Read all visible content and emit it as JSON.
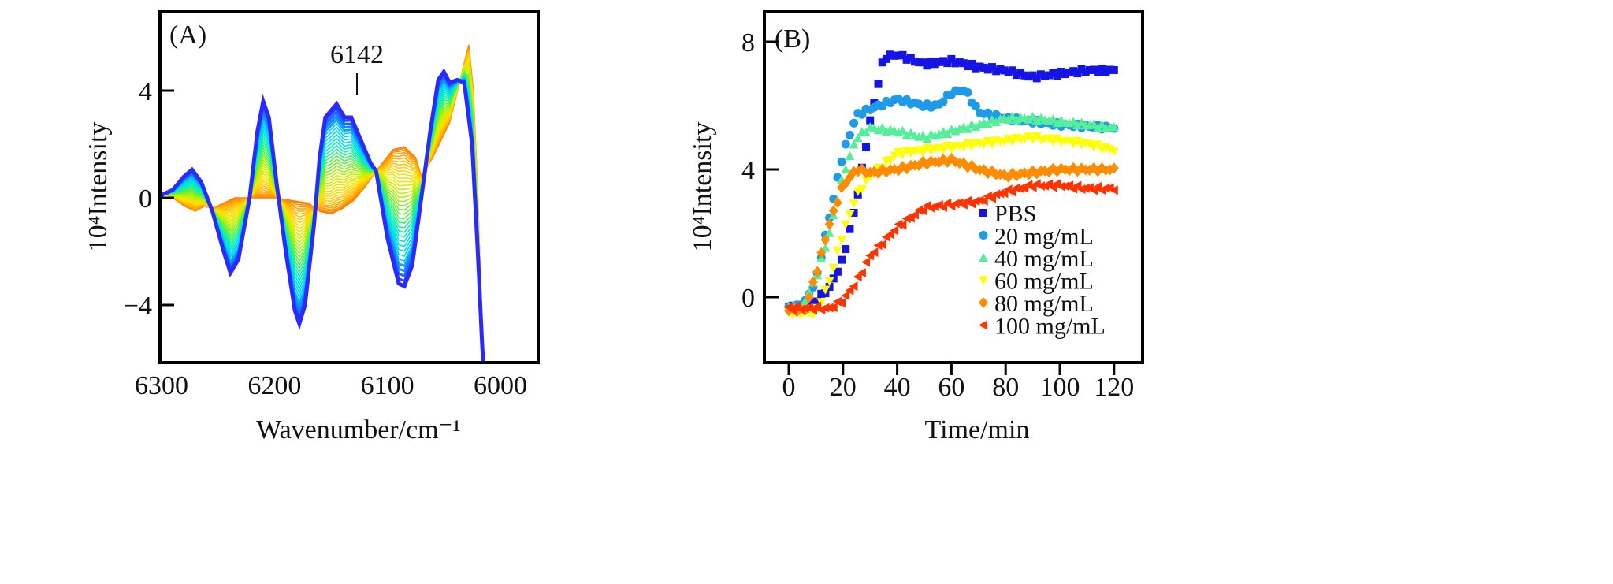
{
  "chart_data": [
    {
      "type": "line",
      "panel_label": "(A)",
      "xlabel": "Wavenumber/cm⁻¹",
      "ylabel": "10⁴Intensity",
      "xlim": [
        6300,
        5966
      ],
      "ylim": [
        -6.1,
        6.8
      ],
      "xticks": [
        "6300",
        "6200",
        "6100",
        "6000"
      ],
      "xtick_values": [
        6300,
        6200,
        6100,
        6000
      ],
      "yticks": [
        "−4",
        "0",
        "4"
      ],
      "ytick_values": [
        -4,
        0,
        4
      ],
      "annotation": {
        "text": "6142",
        "x": 6142
      },
      "n_curves": 36,
      "colors": [
        "#ff7a00",
        "#ffb000",
        "#ffe000",
        "#c8f000",
        "#60f040",
        "#00f0c0",
        "#00c8ff",
        "#2a2aff"
      ],
      "series_start": {
        "name": "initial",
        "points": [
          [
            6300,
            0.2
          ],
          [
            6290,
            0.0
          ],
          [
            6280,
            -0.3
          ],
          [
            6270,
            -0.5
          ],
          [
            6262,
            -0.3
          ],
          [
            6255,
            -0.4
          ],
          [
            6245,
            -0.2
          ],
          [
            6235,
            0.0
          ],
          [
            6220,
            0.0
          ],
          [
            6200,
            0.0
          ],
          [
            6185,
            -0.1
          ],
          [
            6170,
            -0.2
          ],
          [
            6160,
            -0.5
          ],
          [
            6150,
            -0.6
          ],
          [
            6140,
            -0.4
          ],
          [
            6130,
            -0.1
          ],
          [
            6120,
            0.4
          ],
          [
            6110,
            1.0
          ],
          [
            6095,
            1.8
          ],
          [
            6085,
            1.9
          ],
          [
            6075,
            1.5
          ],
          [
            6070,
            0.8
          ],
          [
            6060,
            1.5
          ],
          [
            6045,
            2.8
          ],
          [
            6035,
            4.5
          ],
          [
            6028,
            5.7
          ],
          [
            6024,
            4.0
          ],
          [
            6020,
            0.0
          ],
          [
            6015,
            -6.5
          ]
        ]
      },
      "series_end": {
        "name": "final",
        "points": [
          [
            6300,
            0.1
          ],
          [
            6295,
            0.2
          ],
          [
            6290,
            0.3
          ],
          [
            6280,
            0.8
          ],
          [
            6273,
            1.05
          ],
          [
            6265,
            0.6
          ],
          [
            6255,
            -0.5
          ],
          [
            6245,
            -2.0
          ],
          [
            6239,
            -2.8
          ],
          [
            6232,
            -2.3
          ],
          [
            6222,
            0.0
          ],
          [
            6215,
            2.5
          ],
          [
            6210,
            3.6
          ],
          [
            6205,
            3.0
          ],
          [
            6198,
            0.5
          ],
          [
            6190,
            -2.0
          ],
          [
            6182,
            -4.2
          ],
          [
            6178,
            -4.7
          ],
          [
            6173,
            -4.0
          ],
          [
            6165,
            -1.0
          ],
          [
            6160,
            1.5
          ],
          [
            6155,
            3.0
          ],
          [
            6145,
            3.5
          ],
          [
            6138,
            3.0
          ],
          [
            6132,
            3.0
          ],
          [
            6125,
            2.3
          ],
          [
            6115,
            1.3
          ],
          [
            6110,
            1.0
          ],
          [
            6100,
            -1.5
          ],
          [
            6090,
            -3.2
          ],
          [
            6085,
            -3.3
          ],
          [
            6078,
            -2.5
          ],
          [
            6070,
            0.0
          ],
          [
            6062,
            2.5
          ],
          [
            6055,
            4.4
          ],
          [
            6050,
            4.7
          ],
          [
            6045,
            4.3
          ],
          [
            6038,
            4.4
          ],
          [
            6032,
            4.3
          ],
          [
            6025,
            2.0
          ],
          [
            6020,
            -2.0
          ],
          [
            6015,
            -6.5
          ]
        ]
      }
    },
    {
      "type": "scatter",
      "panel_label": "(B)",
      "xlabel": "Time/min",
      "ylabel": "10⁴Intensity",
      "xlim": [
        -9,
        130
      ],
      "ylim": [
        -2.05,
        8.94
      ],
      "xticks": [
        "0",
        "20",
        "40",
        "60",
        "80",
        "100",
        "120"
      ],
      "xtick_values": [
        0,
        20,
        40,
        60,
        80,
        100,
        120
      ],
      "yticks": [
        "0",
        "4",
        "8"
      ],
      "ytick_values": [
        0,
        4,
        8
      ],
      "legend_position": "bottom-right",
      "series": [
        {
          "name": "PBS",
          "color": "#1414e6",
          "marker": "square",
          "points": [
            [
              0,
              -0.3
            ],
            [
              8,
              -0.3
            ],
            [
              15,
              0.3
            ],
            [
              20,
              1.2
            ],
            [
              25,
              3.0
            ],
            [
              30,
              5.5
            ],
            [
              35,
              7.5
            ],
            [
              40,
              7.6
            ],
            [
              50,
              7.3
            ],
            [
              60,
              7.4
            ],
            [
              70,
              7.2
            ],
            [
              80,
              7.1
            ],
            [
              90,
              6.9
            ],
            [
              100,
              7.0
            ],
            [
              110,
              7.1
            ],
            [
              120,
              7.1
            ]
          ]
        },
        {
          "name": "20 mg/mL",
          "color": "#1e9be8",
          "marker": "circle",
          "points": [
            [
              0,
              -0.3
            ],
            [
              5,
              -0.3
            ],
            [
              10,
              0.5
            ],
            [
              15,
              2.5
            ],
            [
              20,
              4.5
            ],
            [
              25,
              5.7
            ],
            [
              30,
              5.9
            ],
            [
              40,
              6.2
            ],
            [
              50,
              6.0
            ],
            [
              55,
              6.0
            ],
            [
              60,
              6.4
            ],
            [
              65,
              6.5
            ],
            [
              70,
              5.8
            ],
            [
              80,
              5.6
            ],
            [
              90,
              5.5
            ],
            [
              100,
              5.4
            ],
            [
              120,
              5.3
            ]
          ]
        },
        {
          "name": "40 mg/mL",
          "color": "#55ee99",
          "marker": "triangle-up",
          "points": [
            [
              0,
              -0.3
            ],
            [
              5,
              -0.3
            ],
            [
              10,
              0.6
            ],
            [
              15,
              2.0
            ],
            [
              20,
              3.8
            ],
            [
              25,
              5.0
            ],
            [
              30,
              5.3
            ],
            [
              40,
              5.2
            ],
            [
              50,
              5.0
            ],
            [
              60,
              5.2
            ],
            [
              70,
              5.4
            ],
            [
              80,
              5.6
            ],
            [
              90,
              5.6
            ],
            [
              100,
              5.5
            ],
            [
              120,
              5.3
            ]
          ]
        },
        {
          "name": "60 mg/mL",
          "color": "#ffff00",
          "marker": "triangle-down",
          "points": [
            [
              0,
              -0.5
            ],
            [
              10,
              -0.5
            ],
            [
              15,
              0.5
            ],
            [
              20,
              2.0
            ],
            [
              25,
              3.2
            ],
            [
              30,
              3.8
            ],
            [
              40,
              4.5
            ],
            [
              50,
              4.6
            ],
            [
              60,
              4.7
            ],
            [
              70,
              4.8
            ],
            [
              80,
              4.9
            ],
            [
              90,
              5.0
            ],
            [
              100,
              4.9
            ],
            [
              110,
              4.8
            ],
            [
              120,
              4.6
            ]
          ]
        },
        {
          "name": "80 mg/mL",
          "color": "#ff8c00",
          "marker": "diamond",
          "points": [
            [
              0,
              -0.4
            ],
            [
              6,
              -0.4
            ],
            [
              10,
              0.7
            ],
            [
              15,
              2.3
            ],
            [
              20,
              3.5
            ],
            [
              25,
              4.0
            ],
            [
              30,
              3.9
            ],
            [
              40,
              4.0
            ],
            [
              50,
              4.2
            ],
            [
              60,
              4.3
            ],
            [
              70,
              4.0
            ],
            [
              80,
              3.8
            ],
            [
              90,
              3.9
            ],
            [
              100,
              4.0
            ],
            [
              120,
              4.0
            ]
          ]
        },
        {
          "name": "100 mg/mL",
          "color": "#ff3300",
          "marker": "triangle-left",
          "points": [
            [
              0,
              -0.35
            ],
            [
              15,
              -0.35
            ],
            [
              20,
              -0.1
            ],
            [
              25,
              0.5
            ],
            [
              30,
              1.3
            ],
            [
              40,
              2.2
            ],
            [
              50,
              2.8
            ],
            [
              60,
              2.9
            ],
            [
              70,
              3.0
            ],
            [
              80,
              3.3
            ],
            [
              90,
              3.5
            ],
            [
              100,
              3.5
            ],
            [
              110,
              3.4
            ],
            [
              120,
              3.4
            ]
          ]
        }
      ]
    }
  ]
}
